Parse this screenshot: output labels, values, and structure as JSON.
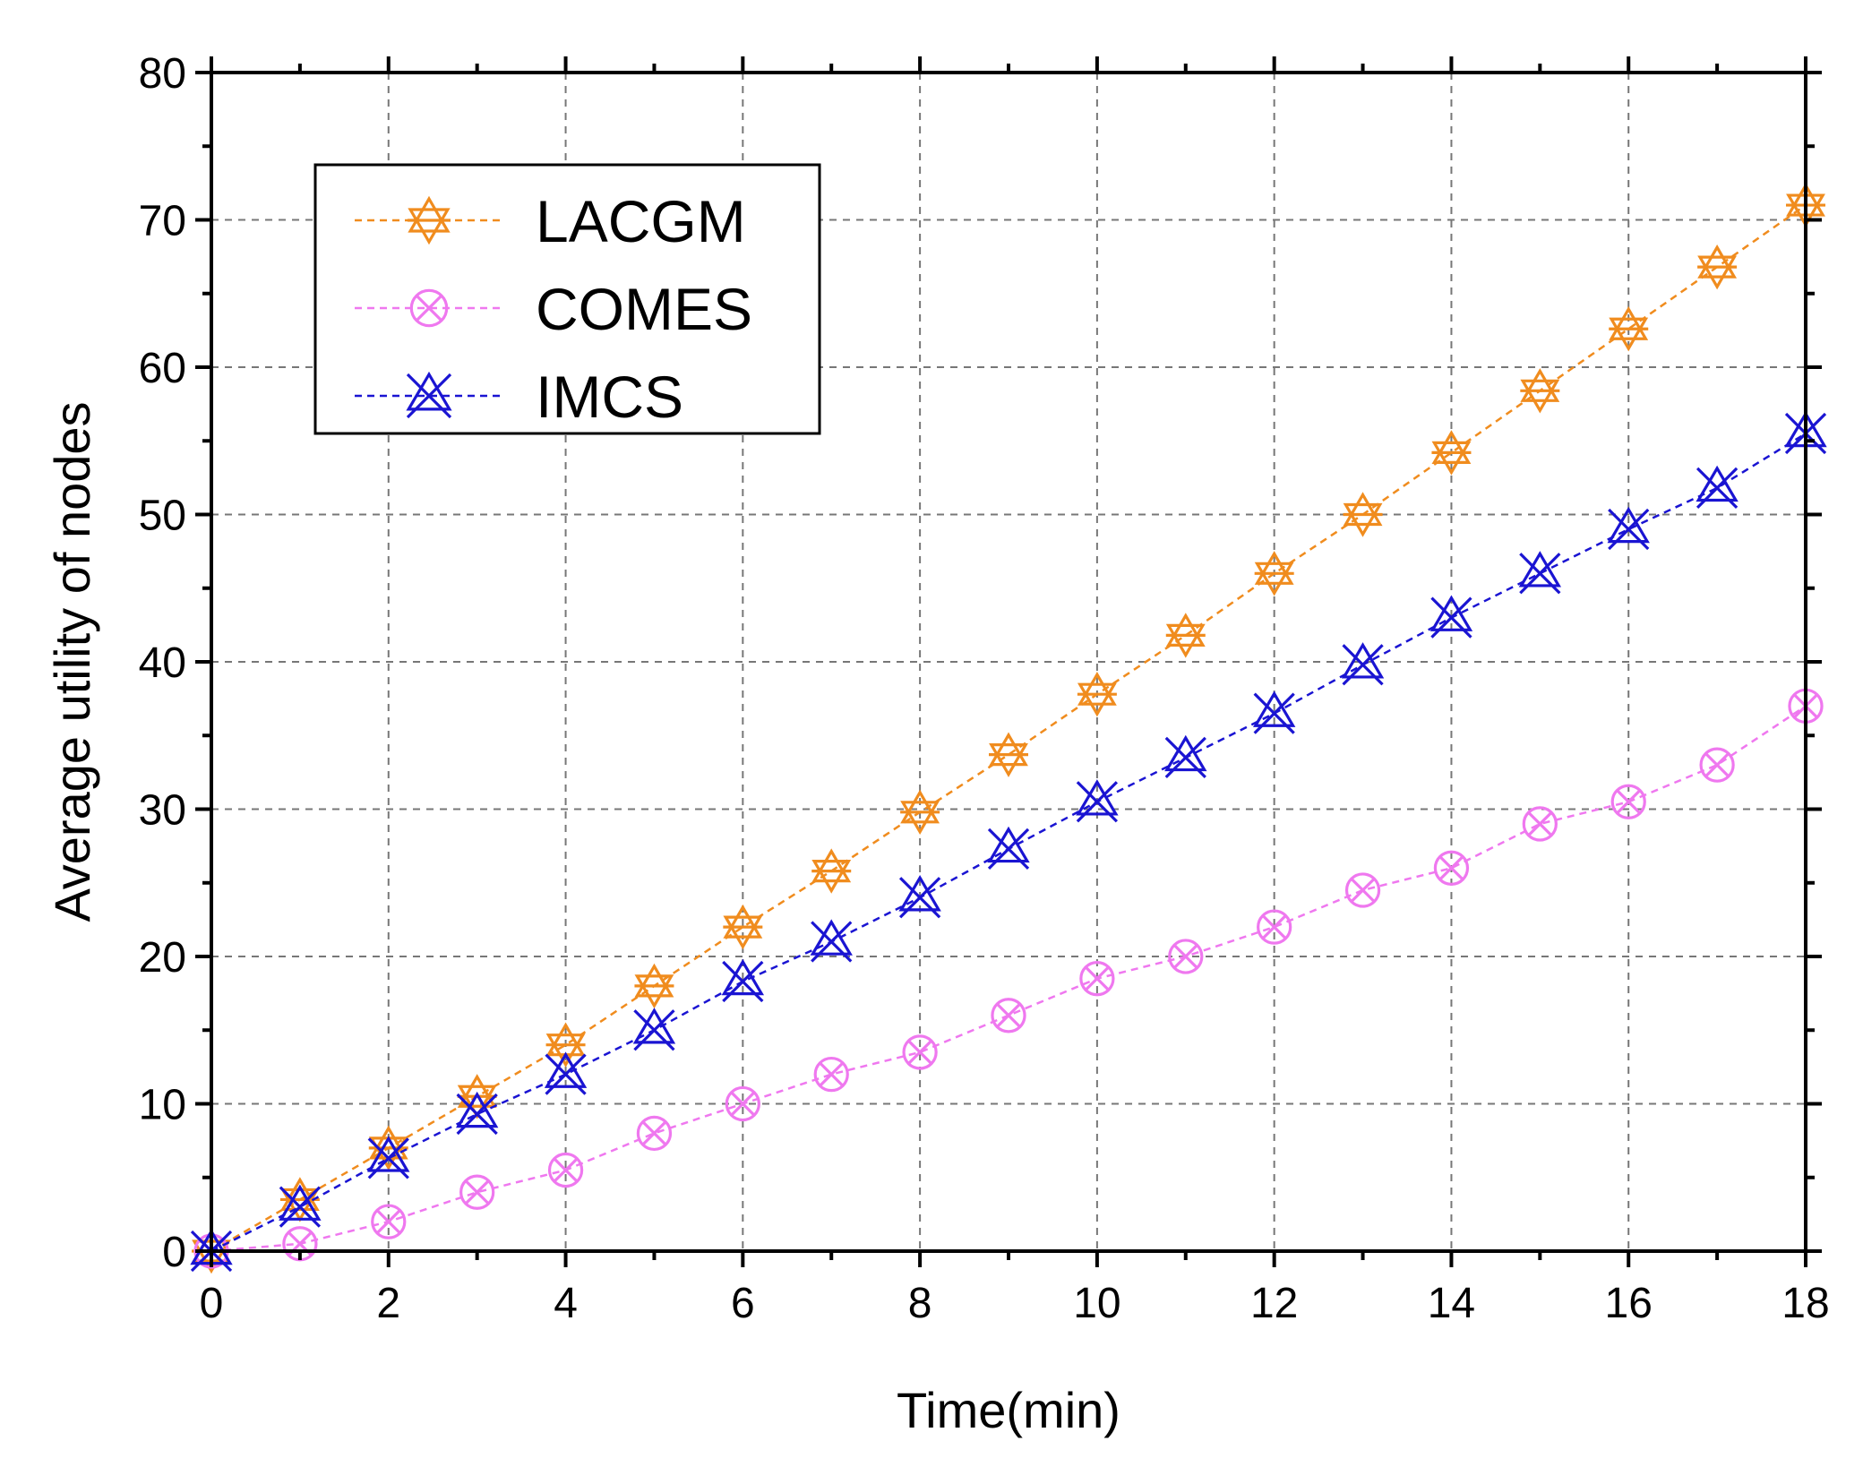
{
  "chart_data": {
    "type": "line",
    "title": "",
    "xlabel": "Time(min)",
    "ylabel": "Average utility of nodes",
    "xlim": [
      0,
      18
    ],
    "ylim": [
      0,
      80
    ],
    "xticks": [
      0,
      2,
      4,
      6,
      8,
      10,
      12,
      14,
      16,
      18
    ],
    "yticks": [
      0,
      10,
      20,
      30,
      40,
      50,
      60,
      70,
      80
    ],
    "grid": true,
    "legend_position": "top-left",
    "x": [
      0,
      1,
      2,
      3,
      4,
      5,
      6,
      7,
      8,
      9,
      10,
      11,
      12,
      13,
      14,
      15,
      16,
      17,
      18
    ],
    "series": [
      {
        "name": "LACGM",
        "color": "#f08c1e",
        "marker": "asterisk-star",
        "values": [
          0,
          3.5,
          7,
          10.5,
          14,
          18,
          22,
          25.8,
          29.8,
          33.7,
          37.8,
          41.8,
          46,
          50,
          54.2,
          58.4,
          62.6,
          66.8,
          71
        ]
      },
      {
        "name": "COMES",
        "color": "#ef78ef",
        "marker": "circle-x",
        "values": [
          0,
          0.5,
          2,
          4,
          5.5,
          8,
          10,
          12,
          13.5,
          16,
          18.5,
          20,
          22,
          24.5,
          26,
          29,
          30.5,
          33,
          37
        ]
      },
      {
        "name": "IMCS",
        "color": "#1a14d2",
        "marker": "triangle-x",
        "values": [
          0,
          3,
          6.3,
          9.3,
          12,
          15,
          18.3,
          21,
          24,
          27.3,
          30.5,
          33.5,
          36.5,
          39.8,
          43,
          46,
          49,
          51.8,
          55.5
        ]
      }
    ]
  }
}
